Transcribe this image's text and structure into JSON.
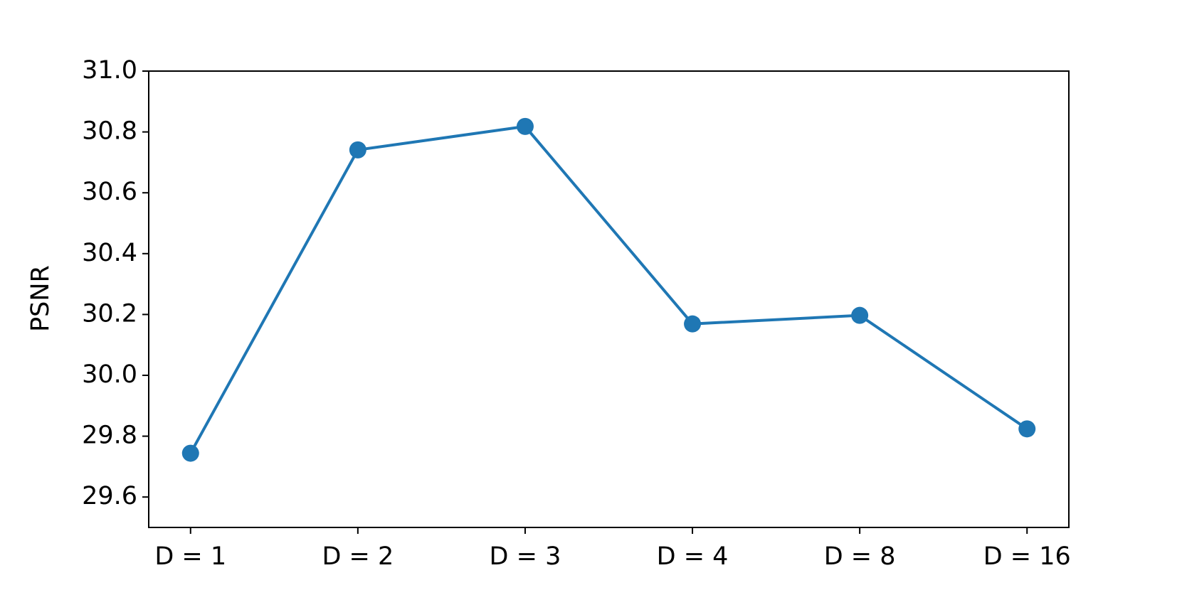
{
  "chart_data": {
    "type": "line",
    "y_label": "PSNR",
    "categories": [
      "D = 1",
      "D = 2",
      "D = 3",
      "D = 4",
      "D = 8",
      "D = 16"
    ],
    "series": [
      {
        "color": "#1f77b4",
        "values": [
          29.744,
          30.741,
          30.818,
          30.169,
          30.197,
          29.824
        ]
      }
    ],
    "ylim": [
      29.5,
      31.0
    ],
    "yticks": [
      {
        "value": 29.6,
        "label": "29.6"
      },
      {
        "value": 29.8,
        "label": "29.8"
      },
      {
        "value": 30.0,
        "label": "30.0"
      },
      {
        "value": 30.2,
        "label": "30.2"
      },
      {
        "value": 30.4,
        "label": "30.4"
      },
      {
        "value": 30.6,
        "label": "30.6"
      },
      {
        "value": 30.8,
        "label": "30.8"
      },
      {
        "value": 31.0,
        "label": "31.0"
      }
    ],
    "grid": false
  }
}
